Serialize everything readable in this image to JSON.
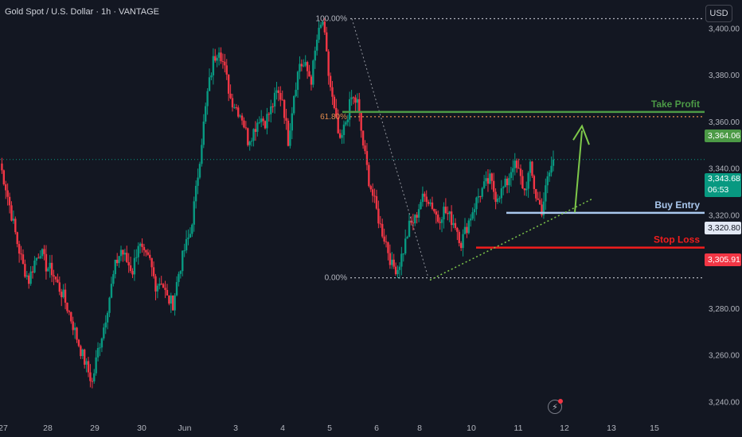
{
  "header": {
    "title": "Gold Spot / U.S. Dollar · 1h · VANTAGE",
    "currency_button": "USD"
  },
  "colors": {
    "up": "#089981",
    "down": "#f23645",
    "take_profit": "#4c9a46",
    "buy_entry": "#aac8ee",
    "stop_loss": "#f21d1d",
    "fib": "#e38b4c"
  },
  "icons": {
    "alerts": "lightning-bolt-icon"
  },
  "chart_data": {
    "type": "candlestick",
    "ylim": [
      3235,
      3412
    ],
    "yticks": [
      "3,240.00",
      "3,260.00",
      "3,280.00",
      "3,300.00",
      "3,320.00",
      "3,340.00",
      "3,360.00",
      "3,380.00",
      "3,400.00"
    ],
    "xticks": [
      "27",
      "28",
      "29",
      "30",
      "Jun",
      "3",
      "4",
      "5",
      "6",
      "8",
      "10",
      "11",
      "12",
      "13",
      "15"
    ],
    "price_series": [
      3342,
      3332,
      3320,
      3308,
      3298,
      3292,
      3300,
      3305,
      3298,
      3296,
      3290,
      3285,
      3278,
      3270,
      3262,
      3255,
      3248,
      3262,
      3272,
      3285,
      3298,
      3305,
      3300,
      3296,
      3308,
      3302,
      3300,
      3290,
      3292,
      3284,
      3282,
      3295,
      3305,
      3312,
      3330,
      3352,
      3372,
      3386,
      3392,
      3382,
      3370,
      3366,
      3362,
      3352,
      3356,
      3362,
      3360,
      3365,
      3372,
      3370,
      3352,
      3372,
      3385,
      3383,
      3378,
      3395,
      3403,
      3380,
      3364,
      3350,
      3360,
      3370,
      3368,
      3350,
      3335,
      3325,
      3315,
      3308,
      3298,
      3297,
      3305,
      3315,
      3318,
      3326,
      3328,
      3324,
      3318,
      3322,
      3319,
      3316,
      3308,
      3315,
      3322,
      3328,
      3332,
      3335,
      3328,
      3330,
      3334,
      3342,
      3338,
      3330,
      3340,
      3328,
      3322,
      3335,
      3343.68
    ],
    "levels": [
      {
        "name": "Take Profit",
        "value": 3364.06,
        "label": "3,364.06"
      },
      {
        "name": "Buy Entry",
        "value": 3320.8,
        "label": "3,320.80"
      },
      {
        "name": "Stop Loss",
        "value": 3305.91,
        "label": "3,305.91"
      }
    ],
    "current_price": {
      "value": 3343.68,
      "label": "3,343.68",
      "countdown": "06:53"
    },
    "fib": [
      {
        "label": "100.00%",
        "value": 3404
      },
      {
        "label": "61.80%",
        "value": 3362
      },
      {
        "label": "0.00%",
        "value": 3293
      }
    ]
  }
}
